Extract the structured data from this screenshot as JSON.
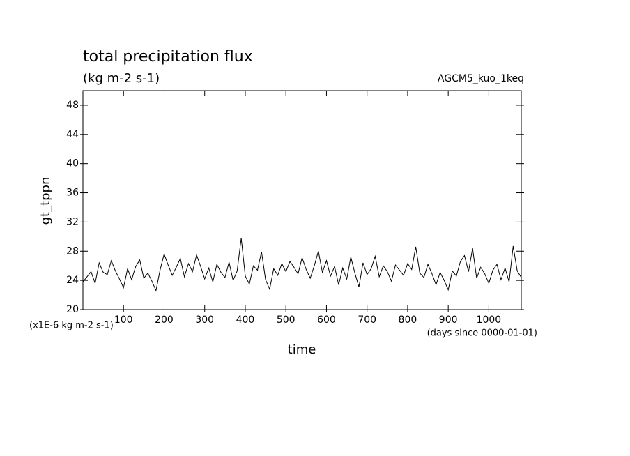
{
  "chart_data": {
    "type": "line",
    "title": "total precipitation flux",
    "subtitle": "(kg m-2 s-1)",
    "annotation": "AGCM5_kuo_1keq",
    "y_label": "gt_tppn",
    "x_label": "time",
    "y_unit": "(x1E-6 kg m-2 s-1)",
    "x_unit": "(days since 0000-01-01)",
    "xlim": [
      0,
      1080
    ],
    "ylim": [
      20,
      50
    ],
    "xticks": [
      100,
      200,
      300,
      400,
      500,
      600,
      700,
      800,
      900,
      1000
    ],
    "yticks": [
      20,
      24,
      28,
      32,
      36,
      40,
      44,
      48
    ],
    "x": [
      0,
      10,
      20,
      30,
      40,
      50,
      60,
      70,
      80,
      90,
      100,
      110,
      120,
      130,
      140,
      150,
      160,
      170,
      180,
      190,
      200,
      210,
      220,
      230,
      240,
      250,
      260,
      270,
      280,
      290,
      300,
      310,
      320,
      330,
      340,
      350,
      360,
      370,
      380,
      390,
      400,
      410,
      420,
      430,
      440,
      450,
      460,
      470,
      480,
      490,
      500,
      510,
      520,
      530,
      540,
      550,
      560,
      570,
      580,
      590,
      600,
      610,
      620,
      630,
      640,
      650,
      660,
      670,
      680,
      690,
      700,
      710,
      720,
      730,
      740,
      750,
      760,
      770,
      780,
      790,
      800,
      810,
      820,
      830,
      840,
      850,
      860,
      870,
      880,
      890,
      900,
      910,
      920,
      930,
      940,
      950,
      960,
      970,
      980,
      990,
      1000,
      1010,
      1020,
      1030,
      1040,
      1050,
      1060,
      1070,
      1080
    ],
    "series": [
      {
        "color": "#000000",
        "values": [
          23.8,
          24.5,
          25.2,
          23.6,
          26.4,
          25.1,
          24.8,
          26.7,
          25.3,
          24.2,
          23.0,
          25.6,
          24.1,
          25.9,
          26.8,
          24.3,
          25.0,
          23.9,
          22.6,
          25.4,
          27.6,
          26.1,
          24.7,
          25.8,
          27.0,
          24.5,
          26.3,
          25.2,
          27.5,
          25.9,
          24.2,
          25.7,
          23.8,
          26.2,
          25.1,
          24.4,
          26.5,
          24.0,
          25.3,
          29.8,
          24.6,
          23.5,
          26.0,
          25.4,
          27.9,
          24.1,
          22.8,
          25.6,
          24.7,
          26.3,
          25.2,
          26.6,
          25.8,
          24.9,
          27.1,
          25.5,
          24.3,
          26.0,
          28.0,
          25.1,
          26.7,
          24.6,
          25.9,
          23.4,
          25.7,
          24.2,
          27.2,
          25.0,
          23.1,
          26.4,
          24.8,
          25.6,
          27.3,
          24.5,
          26.0,
          25.2,
          23.9,
          26.1,
          25.4,
          24.7,
          26.3,
          25.5,
          28.6,
          25.0,
          24.4,
          26.2,
          24.9,
          23.4,
          25.1,
          24.0,
          22.7,
          25.3,
          24.6,
          26.6,
          27.4,
          25.2,
          28.4,
          24.3,
          25.8,
          24.9,
          23.6,
          25.4,
          26.2,
          24.1,
          25.7,
          23.8,
          28.7,
          25.3,
          24.4
        ]
      }
    ]
  }
}
